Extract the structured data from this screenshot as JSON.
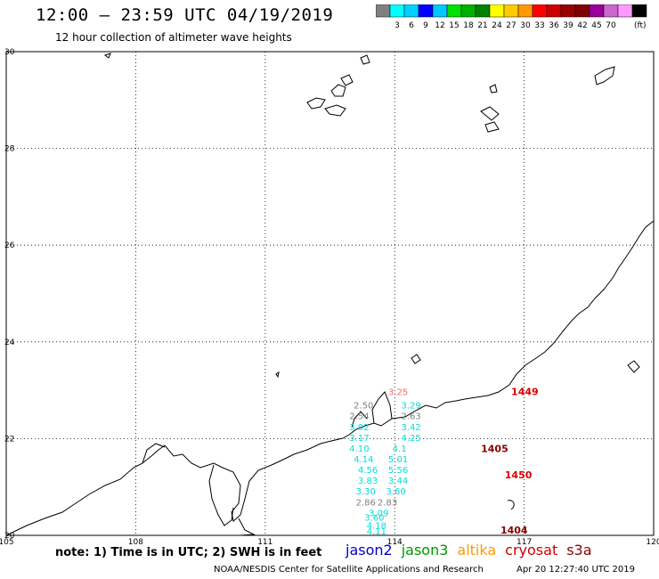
{
  "header": {
    "title": "12:00 – 23:59 UTC 04/19/2019",
    "subtitle": "12 hour collection of altimeter wave heights"
  },
  "colorbar": {
    "unit": "(ft)",
    "colors": [
      "#808080",
      "#00ffff",
      "#00d0ff",
      "#0000ff",
      "#00c8ff",
      "#00e000",
      "#00b000",
      "#008000",
      "#ffff00",
      "#ffcc00",
      "#ff9900",
      "#ff0000",
      "#cc0000",
      "#990000",
      "#800000",
      "#990099",
      "#cc66cc",
      "#ff99ff",
      "#000000"
    ],
    "labels": [
      "3",
      "6",
      "9",
      "12",
      "15",
      "18",
      "21",
      "24",
      "27",
      "30",
      "33",
      "36",
      "39",
      "42",
      "45",
      "70"
    ]
  },
  "axes": {
    "lon_labels": [
      "105",
      "108",
      "111",
      "114",
      "117",
      "120"
    ],
    "lat_labels": [
      "30",
      "28",
      "26",
      "24",
      "22",
      "20"
    ],
    "lon_range": [
      105,
      120
    ],
    "lat_range": [
      20,
      30
    ]
  },
  "wave_heights": [
    {
      "text": "2.50",
      "lon": 113.05,
      "lat": 22.62,
      "color": "#808080"
    },
    {
      "text": "3.25",
      "lon": 113.85,
      "lat": 22.9,
      "color": "#ff6666"
    },
    {
      "text": "3.29",
      "lon": 114.15,
      "lat": 22.62,
      "color": "#00dddd"
    },
    {
      "text": "2.54",
      "lon": 112.95,
      "lat": 22.4,
      "color": "#808080"
    },
    {
      "text": "2.63",
      "lon": 114.15,
      "lat": 22.4,
      "color": "#808080"
    },
    {
      "text": "3.02",
      "lon": 112.95,
      "lat": 22.17,
      "color": "#00dddd"
    },
    {
      "text": "3.42",
      "lon": 114.15,
      "lat": 22.17,
      "color": "#00dddd"
    },
    {
      "text": "3.17",
      "lon": 112.95,
      "lat": 21.95,
      "color": "#00dddd"
    },
    {
      "text": "4.25",
      "lon": 114.15,
      "lat": 21.95,
      "color": "#00dddd"
    },
    {
      "text": "4.10",
      "lon": 112.95,
      "lat": 21.73,
      "color": "#00dddd"
    },
    {
      "text": "4.1",
      "lon": 113.95,
      "lat": 21.73,
      "color": "#00dddd"
    },
    {
      "text": "4.14",
      "lon": 113.05,
      "lat": 21.51,
      "color": "#00dddd"
    },
    {
      "text": "5.01",
      "lon": 113.85,
      "lat": 21.51,
      "color": "#00dddd"
    },
    {
      "text": "4.56",
      "lon": 113.15,
      "lat": 21.29,
      "color": "#00dddd"
    },
    {
      "text": "5.56",
      "lon": 113.85,
      "lat": 21.29,
      "color": "#00dddd"
    },
    {
      "text": "3.44",
      "lon": 113.85,
      "lat": 21.07,
      "color": "#00dddd"
    },
    {
      "text": "3.83",
      "lon": 113.15,
      "lat": 21.07,
      "color": "#00dddd"
    },
    {
      "text": "3.60",
      "lon": 113.8,
      "lat": 20.85,
      "color": "#00dddd"
    },
    {
      "text": "3.30",
      "lon": 113.1,
      "lat": 20.85,
      "color": "#00dddd"
    },
    {
      "text": "2.83",
      "lon": 113.6,
      "lat": 20.62,
      "color": "#808080"
    },
    {
      "text": "2.86",
      "lon": 113.1,
      "lat": 20.62,
      "color": "#808080"
    },
    {
      "text": "3.09",
      "lon": 113.4,
      "lat": 20.4,
      "color": "#00dddd"
    },
    {
      "text": "3.60",
      "lon": 113.3,
      "lat": 20.3,
      "color": "#00dddd"
    },
    {
      "text": "4.18",
      "lon": 113.35,
      "lat": 20.14,
      "color": "#00dddd"
    },
    {
      "text": "4.11",
      "lon": 113.35,
      "lat": 20.02,
      "color": "#00dddd"
    }
  ],
  "pass_times": [
    {
      "text": "1449",
      "lon": 116.7,
      "lat": 22.9,
      "color": "#dd0000"
    },
    {
      "text": "1405",
      "lon": 116.0,
      "lat": 21.72,
      "color": "#880000"
    },
    {
      "text": "1450",
      "lon": 116.55,
      "lat": 21.18,
      "color": "#dd0000"
    },
    {
      "text": "1404",
      "lon": 116.45,
      "lat": 20.04,
      "color": "#880000"
    }
  ],
  "notes": {
    "text": "note: 1) Time is in UTC; 2) SWH is in feet"
  },
  "satellites": [
    {
      "name": "jason2",
      "color": "#0000cc"
    },
    {
      "name": "jason3",
      "color": "#009900"
    },
    {
      "name": "altika",
      "color": "#ff9900"
    },
    {
      "name": "cryosat",
      "color": "#cc0000"
    },
    {
      "name": "s3a",
      "color": "#880000"
    }
  ],
  "footer": {
    "credit": "NOAA/NESDIS Center for Satellite Applications and Research",
    "timestamp": "Apr 20 12:27:40 UTC 2019"
  }
}
